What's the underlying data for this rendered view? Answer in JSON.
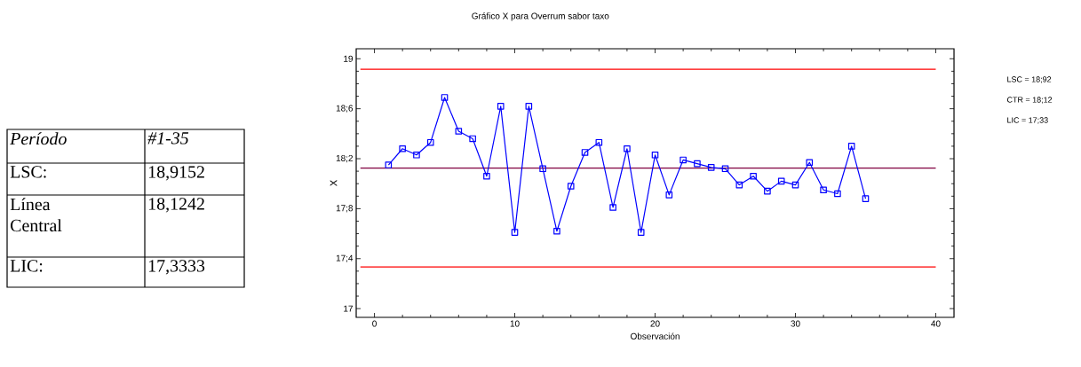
{
  "chart_data": {
    "type": "line",
    "title": "Gráfico X para Overrum sabor taxo",
    "xlabel": "Observación",
    "ylabel": "X",
    "x": [
      1,
      2,
      3,
      4,
      5,
      6,
      7,
      8,
      9,
      10,
      11,
      12,
      13,
      14,
      15,
      16,
      17,
      18,
      19,
      20,
      21,
      22,
      23,
      24,
      25,
      26,
      27,
      28,
      29,
      30,
      31,
      32,
      33,
      34,
      35
    ],
    "series": [
      {
        "color": "#0000ff",
        "values": [
          18.15,
          18.28,
          18.23,
          18.33,
          18.69,
          18.42,
          18.36,
          18.06,
          18.62,
          17.61,
          18.62,
          18.12,
          17.62,
          17.98,
          18.25,
          18.33,
          17.81,
          18.28,
          17.61,
          18.23,
          17.91,
          18.19,
          18.16,
          18.13,
          18.12,
          17.99,
          18.06,
          17.94,
          18.02,
          17.99,
          18.17,
          17.95,
          17.92,
          18.3,
          17.88
        ]
      }
    ],
    "xlim": [
      -1.3,
      41.3
    ],
    "ylim": [
      16.93,
      19.08
    ],
    "xticks": [
      0,
      10,
      20,
      30,
      40
    ],
    "yticks": [
      17,
      {
        "value": 17.4,
        "label": "17;4"
      },
      {
        "value": 17.8,
        "label": "17;8"
      },
      {
        "value": 18.2,
        "label": "18;2"
      },
      {
        "value": 18.6,
        "label": "18;6"
      },
      19
    ],
    "ref_lines": [
      {
        "axis": "y",
        "value": 18.9152,
        "color": "#ff0000"
      },
      {
        "axis": "y",
        "value": 18.1242,
        "color": "#800040"
      },
      {
        "axis": "y",
        "value": 17.3333,
        "color": "#ff0000"
      }
    ],
    "annotations": [
      "Período",
      "#1-35",
      "LSC:",
      "18,9152",
      "Línea Central",
      "18,1242",
      "LIC:",
      "17,3333",
      "LSC = 18;92",
      "CTR = 18;12",
      "LIC = 17;33"
    ],
    "marker": "square",
    "line_style": "solid",
    "grid": false
  }
}
